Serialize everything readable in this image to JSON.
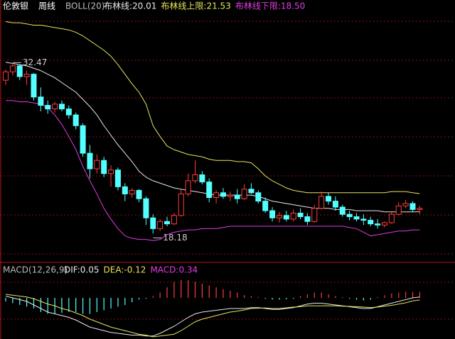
{
  "chart_data": [
    {
      "type": "candlestick",
      "title": "伦敦银",
      "period": "周线",
      "indicator": "BOLL(20)",
      "ylim": [
        15.9,
        37.7
      ],
      "ohlc": [
        [
          31.0,
          31.9,
          30.6,
          31.7
        ],
        [
          31.7,
          32.47,
          31.4,
          32.2
        ],
        [
          32.2,
          32.3,
          31.0,
          31.3
        ],
        [
          31.3,
          31.8,
          30.6,
          31.5
        ],
        [
          31.5,
          31.6,
          29.3,
          29.6
        ],
        [
          29.6,
          30.4,
          28.4,
          28.9
        ],
        [
          28.9,
          29.3,
          28.2,
          28.6
        ],
        [
          28.6,
          29.2,
          28.3,
          29.0
        ],
        [
          29.0,
          29.3,
          28.4,
          28.6
        ],
        [
          28.6,
          28.9,
          27.8,
          28.1
        ],
        [
          28.1,
          28.3,
          26.9,
          27.2
        ],
        [
          27.2,
          27.4,
          24.6,
          24.9
        ],
        [
          24.9,
          25.6,
          22.8,
          23.6
        ],
        [
          23.6,
          24.8,
          23.2,
          24.3
        ],
        [
          24.3,
          24.6,
          22.9,
          23.2
        ],
        [
          23.2,
          23.9,
          22.1,
          23.5
        ],
        [
          23.5,
          23.7,
          21.8,
          22.1
        ],
        [
          22.1,
          22.4,
          20.9,
          21.5
        ],
        [
          21.5,
          22.0,
          21.2,
          21.8
        ],
        [
          21.8,
          21.9,
          20.8,
          21.1
        ],
        [
          21.1,
          21.3,
          18.9,
          19.5
        ],
        [
          19.5,
          19.8,
          18.18,
          18.6
        ],
        [
          18.6,
          19.4,
          18.4,
          19.2
        ],
        [
          19.2,
          19.6,
          18.8,
          19.0
        ],
        [
          19.0,
          19.9,
          18.9,
          19.7
        ],
        [
          19.7,
          21.9,
          19.6,
          21.5
        ],
        [
          21.5,
          23.2,
          21.3,
          22.6
        ],
        [
          22.6,
          24.3,
          22.4,
          23.1
        ],
        [
          23.1,
          23.4,
          22.3,
          22.5
        ],
        [
          22.5,
          22.8,
          20.8,
          21.2
        ],
        [
          21.2,
          21.8,
          20.7,
          21.6
        ],
        [
          21.6,
          22.0,
          21.1,
          21.3
        ],
        [
          21.3,
          21.7,
          20.9,
          21.4
        ],
        [
          21.4,
          21.9,
          20.7,
          21.1
        ],
        [
          21.1,
          22.3,
          21.0,
          21.9
        ],
        [
          21.9,
          22.4,
          21.5,
          21.6
        ],
        [
          21.6,
          21.8,
          20.7,
          20.9
        ],
        [
          20.9,
          21.2,
          19.9,
          20.1
        ],
        [
          20.1,
          20.4,
          19.2,
          19.5
        ],
        [
          19.5,
          20.0,
          19.1,
          19.7
        ],
        [
          19.7,
          20.1,
          19.2,
          19.4
        ],
        [
          19.4,
          20.2,
          19.2,
          19.9
        ],
        [
          19.9,
          20.3,
          19.4,
          19.6
        ],
        [
          19.6,
          19.9,
          18.9,
          19.2
        ],
        [
          19.2,
          20.6,
          19.1,
          20.3
        ],
        [
          20.3,
          21.7,
          20.2,
          21.3
        ],
        [
          21.3,
          21.6,
          20.6,
          20.9
        ],
        [
          20.9,
          21.3,
          20.1,
          20.4
        ],
        [
          20.4,
          20.6,
          19.6,
          19.8
        ],
        [
          19.8,
          20.1,
          19.3,
          19.6
        ],
        [
          19.6,
          19.9,
          19.2,
          19.4
        ],
        [
          19.4,
          19.8,
          18.9,
          19.3
        ],
        [
          19.3,
          19.6,
          18.8,
          19.0
        ],
        [
          19.0,
          19.4,
          18.6,
          18.9
        ],
        [
          18.9,
          19.2,
          18.7,
          19.1
        ],
        [
          19.1,
          20.0,
          19.0,
          19.8
        ],
        [
          19.8,
          20.8,
          19.7,
          20.5
        ],
        [
          20.5,
          21.0,
          20.3,
          20.7
        ],
        [
          20.7,
          20.9,
          20.0,
          20.2
        ],
        [
          20.2,
          20.5,
          19.8,
          20.3
        ]
      ],
      "up_color": "#ff3c3c",
      "down_color": "#54ffff",
      "series": [
        {
          "name": "布林线:",
          "color": "#e8e8e8",
          "values": [
            32.5,
            32.4,
            32.3,
            32.2,
            32.0,
            31.8,
            31.5,
            31.2,
            30.8,
            30.4,
            30.0,
            29.4,
            28.8,
            28.1,
            27.2,
            26.4,
            25.6,
            24.9,
            24.2,
            23.4,
            22.9,
            22.6,
            22.4,
            22.2,
            22.0,
            21.9,
            21.8,
            21.7,
            21.6,
            21.5,
            21.4,
            21.4,
            21.4,
            21.4,
            21.4,
            21.4,
            21.3,
            21.1,
            20.9,
            20.8,
            20.7,
            20.6,
            20.5,
            20.4,
            20.3,
            20.3,
            20.3,
            20.2,
            20.2,
            20.2,
            20.1,
            20.1,
            20.1,
            20.1,
            20.0,
            20.0,
            20.0,
            20.0,
            20.0,
            20.01
          ]
        },
        {
          "name": "布林线上限:",
          "color": "#e6e65a",
          "values": [
            35.9,
            35.8,
            35.8,
            35.7,
            35.6,
            35.6,
            35.5,
            35.4,
            35.3,
            35.2,
            35.0,
            34.7,
            34.3,
            33.9,
            33.5,
            33.0,
            32.3,
            31.5,
            30.7,
            30.0,
            29.0,
            27.2,
            26.3,
            25.5,
            25.2,
            25.0,
            24.8,
            24.7,
            24.6,
            24.4,
            24.3,
            24.3,
            24.3,
            24.2,
            24.2,
            24.1,
            23.6,
            23.0,
            22.6,
            22.3,
            22.0,
            21.8,
            21.7,
            21.6,
            21.6,
            21.6,
            21.6,
            21.6,
            21.6,
            21.6,
            21.6,
            21.6,
            21.6,
            21.6,
            21.6,
            21.7,
            21.7,
            21.7,
            21.6,
            21.53
          ]
        },
        {
          "name": "布林线下限:",
          "color": "#e03ce0",
          "values": [
            29.3,
            29.3,
            29.2,
            29.2,
            29.1,
            29.0,
            28.7,
            28.1,
            27.3,
            26.3,
            25.2,
            23.8,
            22.6,
            21.5,
            20.3,
            19.4,
            18.6,
            18.0,
            17.8,
            17.7,
            17.7,
            17.6,
            17.7,
            18.1,
            18.3,
            18.4,
            18.5,
            18.5,
            18.6,
            18.6,
            18.6,
            18.7,
            18.8,
            18.8,
            18.8,
            18.8,
            18.8,
            18.8,
            18.8,
            18.8,
            18.8,
            18.8,
            18.8,
            18.8,
            18.8,
            18.8,
            18.8,
            18.8,
            18.8,
            18.7,
            18.6,
            18.3,
            18.0,
            18.1,
            18.2,
            18.3,
            18.4,
            18.4,
            18.5,
            18.5
          ],
          "value_labels": [
            null,
            null,
            null,
            null,
            null,
            null,
            null,
            null,
            null,
            null,
            null,
            null,
            null,
            null,
            null,
            null,
            null,
            null,
            null,
            null,
            null,
            null,
            null,
            null,
            null,
            null,
            null,
            null,
            null,
            null,
            null,
            null,
            null,
            null,
            null,
            null,
            null,
            null,
            null,
            null,
            null,
            null,
            null,
            null,
            null,
            null,
            null,
            null,
            null,
            null,
            null,
            null,
            null,
            null,
            null,
            null,
            null,
            null,
            null,
            "18.50"
          ]
        }
      ],
      "annotations": {
        "high": 32.47,
        "low": 18.18
      }
    },
    {
      "type": "macd",
      "title": "MACD(12,26,9)",
      "ylim": [
        -2.32,
        1.6
      ],
      "up_color": "#ff3c3c",
      "down_color": "#54ffff",
      "series": [
        {
          "name": "DIF:",
          "color": "#e8e8e8",
          "values": [
            0.1,
            0.0,
            -0.1,
            -0.2,
            -0.4,
            -0.6,
            -0.8,
            -0.9,
            -1.0,
            -1.1,
            -1.25,
            -1.45,
            -1.65,
            -1.75,
            -1.85,
            -1.95,
            -2.0,
            -2.05,
            -2.1,
            -2.1,
            -2.15,
            -2.15,
            -2.0,
            -1.8,
            -1.6,
            -1.35,
            -1.1,
            -0.9,
            -0.8,
            -0.75,
            -0.7,
            -0.65,
            -0.6,
            -0.6,
            -0.6,
            -0.55,
            -0.55,
            -0.6,
            -0.65,
            -0.65,
            -0.6,
            -0.55,
            -0.45,
            -0.35,
            -0.3,
            -0.3,
            -0.35,
            -0.4,
            -0.45,
            -0.5,
            -0.55,
            -0.6,
            -0.6,
            -0.5,
            -0.4,
            -0.3,
            -0.2,
            -0.1,
            0.0,
            0.05
          ]
        },
        {
          "name": "DEA:",
          "color": "#e6e65a",
          "values": [
            0.2,
            0.15,
            0.1,
            0.05,
            -0.05,
            -0.2,
            -0.35,
            -0.45,
            -0.6,
            -0.7,
            -0.85,
            -1.0,
            -1.2,
            -1.35,
            -1.5,
            -1.65,
            -1.75,
            -1.85,
            -1.95,
            -2.05,
            -2.1,
            -2.2,
            -2.15,
            -2.1,
            -2.05,
            -1.85,
            -1.6,
            -1.35,
            -1.2,
            -1.1,
            -1.0,
            -0.9,
            -0.8,
            -0.75,
            -0.68,
            -0.6,
            -0.58,
            -0.57,
            -0.6,
            -0.6,
            -0.56,
            -0.52,
            -0.5,
            -0.45,
            -0.45,
            -0.45,
            -0.45,
            -0.45,
            -0.47,
            -0.48,
            -0.5,
            -0.52,
            -0.55,
            -0.52,
            -0.47,
            -0.42,
            -0.35,
            -0.28,
            -0.17,
            -0.12
          ]
        },
        {
          "name": "MACD:",
          "color": "#e03ce0",
          "bars": true,
          "values": [
            -0.2,
            -0.3,
            -0.4,
            -0.5,
            -0.6,
            -0.8,
            -0.9,
            -0.9,
            -0.85,
            -0.8,
            -0.8,
            -0.9,
            -0.9,
            -0.8,
            -0.7,
            -0.6,
            -0.5,
            -0.4,
            -0.25,
            -0.1,
            -0.05,
            0.1,
            0.3,
            0.6,
            0.9,
            1.0,
            1.0,
            0.9,
            0.8,
            0.7,
            0.6,
            0.5,
            0.4,
            0.3,
            0.15,
            0.1,
            0.05,
            -0.05,
            -0.1,
            -0.1,
            -0.08,
            -0.05,
            0.1,
            0.2,
            0.3,
            0.3,
            0.2,
            0.1,
            0.05,
            -0.05,
            -0.1,
            -0.15,
            -0.1,
            0.05,
            0.15,
            0.25,
            0.3,
            0.35,
            0.34,
            0.34
          ]
        }
      ]
    }
  ]
}
